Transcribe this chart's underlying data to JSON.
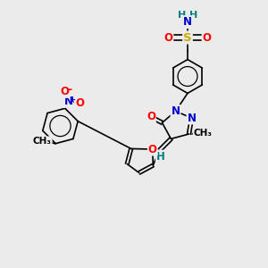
{
  "background_color": "#ebebeb",
  "atom_colors": {
    "C": "#000000",
    "N": "#0000cc",
    "O": "#ff0000",
    "S": "#ccaa00",
    "H": "#008080"
  },
  "bond_color": "#000000",
  "figsize": [
    3.0,
    3.0
  ],
  "dpi": 100
}
